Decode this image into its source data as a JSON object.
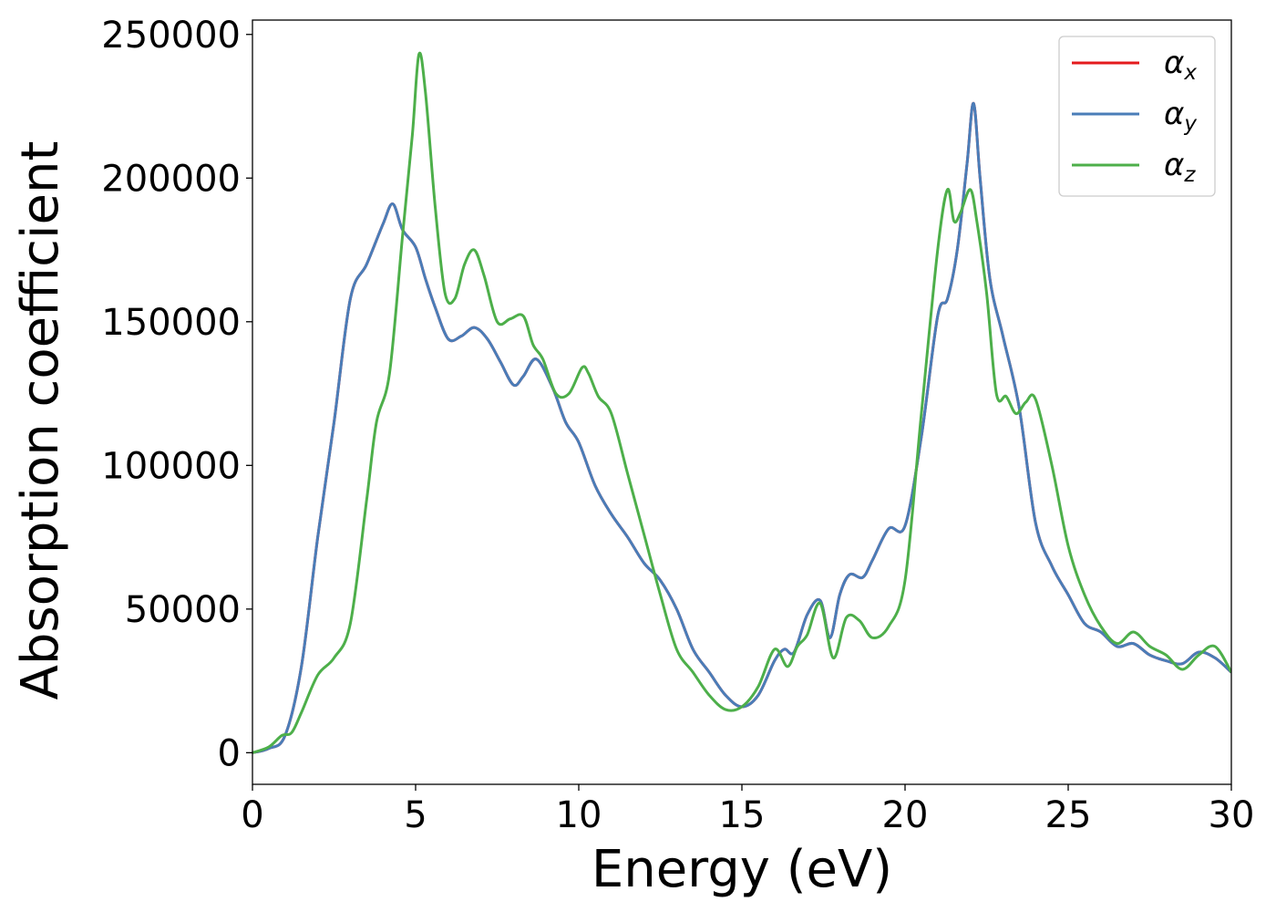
{
  "chart_data": {
    "type": "line",
    "xlabel": "Energy (eV)",
    "ylabel": "Absorption coefficient",
    "xlim": [
      0,
      30
    ],
    "ylim": [
      -11000,
      255000
    ],
    "xticks": [
      0,
      5,
      10,
      15,
      20,
      25,
      30
    ],
    "yticks": [
      0,
      50000,
      100000,
      150000,
      200000,
      250000
    ],
    "grid": false,
    "legend_position": "top-right",
    "series": [
      {
        "name": "αx",
        "base": "α",
        "sub": "x",
        "color": "#e41a1c",
        "x": [
          0,
          0.5,
          1,
          1.5,
          2,
          2.5,
          3,
          3.5,
          4,
          4.3,
          4.6,
          5,
          5.3,
          5.6,
          6,
          6.4,
          6.8,
          7.2,
          7.6,
          8,
          8.3,
          8.7,
          9.2,
          9.6,
          10,
          10.5,
          11,
          11.5,
          12,
          12.5,
          13,
          13.5,
          14,
          14.5,
          15,
          15.5,
          16,
          16.3,
          16.6,
          17,
          17.4,
          17.7,
          18,
          18.3,
          18.7,
          19,
          19.5,
          20,
          20.5,
          21,
          21.3,
          21.6,
          21.9,
          22.1,
          22.3,
          22.6,
          23,
          23.5,
          24,
          24.5,
          25,
          25.5,
          26,
          26.5,
          27,
          27.5,
          28,
          28.5,
          29,
          29.5,
          30
        ],
        "y": [
          0,
          1500,
          6000,
          30000,
          75000,
          115000,
          158000,
          170000,
          184000,
          191000,
          182000,
          176000,
          165000,
          155000,
          144000,
          145000,
          148000,
          144000,
          136000,
          128000,
          131000,
          137000,
          127000,
          115000,
          108000,
          93000,
          83000,
          75000,
          66000,
          60000,
          50000,
          36000,
          28000,
          20000,
          16000,
          20000,
          32000,
          36000,
          35000,
          48000,
          53000,
          40000,
          55000,
          62000,
          61000,
          67000,
          78000,
          79000,
          110000,
          152000,
          158000,
          175000,
          205000,
          226000,
          200000,
          165000,
          145000,
          120000,
          80000,
          65000,
          55000,
          45000,
          42000,
          37000,
          38000,
          34000,
          32000,
          31000,
          35000,
          33000,
          28000
        ]
      },
      {
        "name": "αy",
        "base": "α",
        "sub": "y",
        "color": "#4a7db8",
        "x": [
          0,
          0.5,
          1,
          1.5,
          2,
          2.5,
          3,
          3.5,
          4,
          4.3,
          4.6,
          5,
          5.3,
          5.6,
          6,
          6.4,
          6.8,
          7.2,
          7.6,
          8,
          8.3,
          8.7,
          9.2,
          9.6,
          10,
          10.5,
          11,
          11.5,
          12,
          12.5,
          13,
          13.5,
          14,
          14.5,
          15,
          15.5,
          16,
          16.3,
          16.6,
          17,
          17.4,
          17.7,
          18,
          18.3,
          18.7,
          19,
          19.5,
          20,
          20.5,
          21,
          21.3,
          21.6,
          21.9,
          22.1,
          22.3,
          22.6,
          23,
          23.5,
          24,
          24.5,
          25,
          25.5,
          26,
          26.5,
          27,
          27.5,
          28,
          28.5,
          29,
          29.5,
          30
        ],
        "y": [
          0,
          1500,
          6000,
          30000,
          75000,
          115000,
          158000,
          170000,
          184000,
          191000,
          182000,
          176000,
          165000,
          155000,
          144000,
          145000,
          148000,
          144000,
          136000,
          128000,
          131000,
          137000,
          127000,
          115000,
          108000,
          93000,
          83000,
          75000,
          66000,
          60000,
          50000,
          36000,
          28000,
          20000,
          16000,
          20000,
          32000,
          36000,
          35000,
          48000,
          53000,
          40000,
          55000,
          62000,
          61000,
          67000,
          78000,
          79000,
          110000,
          152000,
          158000,
          175000,
          205000,
          226000,
          200000,
          165000,
          145000,
          120000,
          80000,
          65000,
          55000,
          45000,
          42000,
          37000,
          38000,
          34000,
          32000,
          31000,
          35000,
          33000,
          28000
        ]
      },
      {
        "name": "αz",
        "base": "α",
        "sub": "z",
        "color": "#4daf4a",
        "x": [
          0,
          0.5,
          0.9,
          1.2,
          1.5,
          2,
          2.5,
          3,
          3.5,
          3.8,
          4.2,
          4.6,
          4.9,
          5.1,
          5.3,
          5.6,
          5.9,
          6.2,
          6.5,
          6.8,
          7.1,
          7.5,
          7.9,
          8.3,
          8.6,
          8.9,
          9.3,
          9.7,
          10.1,
          10.3,
          10.6,
          11,
          11.5,
          12,
          12.5,
          13,
          13.5,
          14,
          14.5,
          15,
          15.5,
          16,
          16.4,
          16.7,
          17,
          17.4,
          17.8,
          18.2,
          18.6,
          19,
          19.5,
          20,
          20.5,
          21,
          21.3,
          21.5,
          21.7,
          22,
          22.2,
          22.5,
          22.8,
          23.1,
          23.4,
          23.7,
          24,
          24.5,
          25,
          25.5,
          26,
          26.5,
          27,
          27.5,
          28,
          28.5,
          29,
          29.5,
          30
        ],
        "y": [
          0,
          2000,
          6000,
          7000,
          14000,
          27000,
          33000,
          45000,
          88000,
          115000,
          132000,
          180000,
          215000,
          243000,
          230000,
          190000,
          160000,
          158000,
          170000,
          175000,
          166000,
          150000,
          151000,
          152000,
          142000,
          137000,
          125000,
          125000,
          134000,
          132000,
          124000,
          118000,
          97000,
          76000,
          55000,
          36000,
          28000,
          20000,
          15000,
          16000,
          23000,
          36000,
          30000,
          37000,
          41000,
          52000,
          33000,
          47000,
          46000,
          40000,
          44000,
          60000,
          118000,
          175000,
          196000,
          185000,
          188000,
          196000,
          185000,
          160000,
          125000,
          124000,
          118000,
          122000,
          123000,
          100000,
          72000,
          55000,
          44000,
          38000,
          42000,
          37000,
          34000,
          29000,
          34000,
          37000,
          28000
        ]
      }
    ]
  }
}
